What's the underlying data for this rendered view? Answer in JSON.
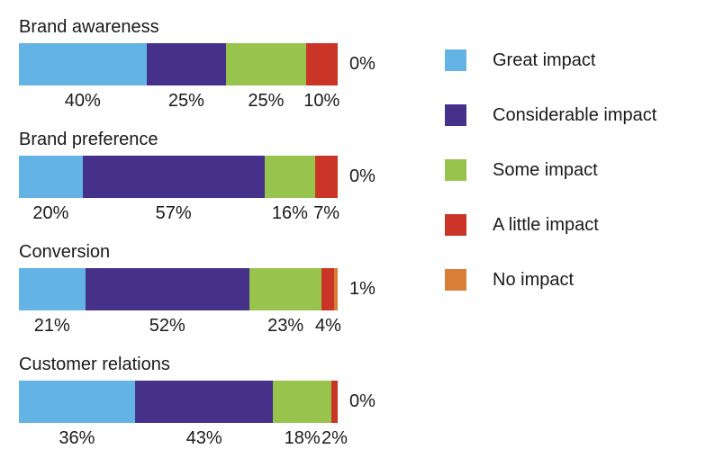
{
  "chart_data": {
    "type": "bar",
    "variant": "horizontal-stacked",
    "title": "",
    "xlabel": "",
    "ylabel": "",
    "value_suffix": "%",
    "legend_position": "right",
    "grid": false,
    "series": [
      {
        "name": "Great impact",
        "color": "#63b3e4"
      },
      {
        "name": "Considerable impact",
        "color": "#45318a"
      },
      {
        "name": "Some impact",
        "color": "#98c34d"
      },
      {
        "name": "A little impact",
        "color": "#cb3528"
      },
      {
        "name": "No impact",
        "color": "#d98038"
      }
    ],
    "categories": [
      "Brand awareness",
      "Brand preference",
      "Conversion",
      "Customer relations"
    ],
    "rows": [
      {
        "category": "Brand awareness",
        "values": [
          40,
          25,
          25,
          10,
          0
        ],
        "segment_labels": [
          "40%",
          "25%",
          "25%",
          "10%"
        ],
        "end_label": "0%"
      },
      {
        "category": "Brand preference",
        "values": [
          20,
          57,
          16,
          7,
          0
        ],
        "segment_labels": [
          "20%",
          "57%",
          "16%",
          "7%"
        ],
        "end_label": "0%"
      },
      {
        "category": "Conversion",
        "values": [
          21,
          52,
          23,
          4,
          1
        ],
        "segment_labels": [
          "21%",
          "52%",
          "23%",
          "4%"
        ],
        "end_label": "1%"
      },
      {
        "category": "Customer relations",
        "values": [
          36,
          43,
          18,
          2,
          0
        ],
        "segment_labels": [
          "36%",
          "43%",
          "18%",
          "2%"
        ],
        "end_label": "0%"
      }
    ]
  },
  "colors": {
    "background": "#ffffff",
    "text": "#1a1a1a"
  }
}
